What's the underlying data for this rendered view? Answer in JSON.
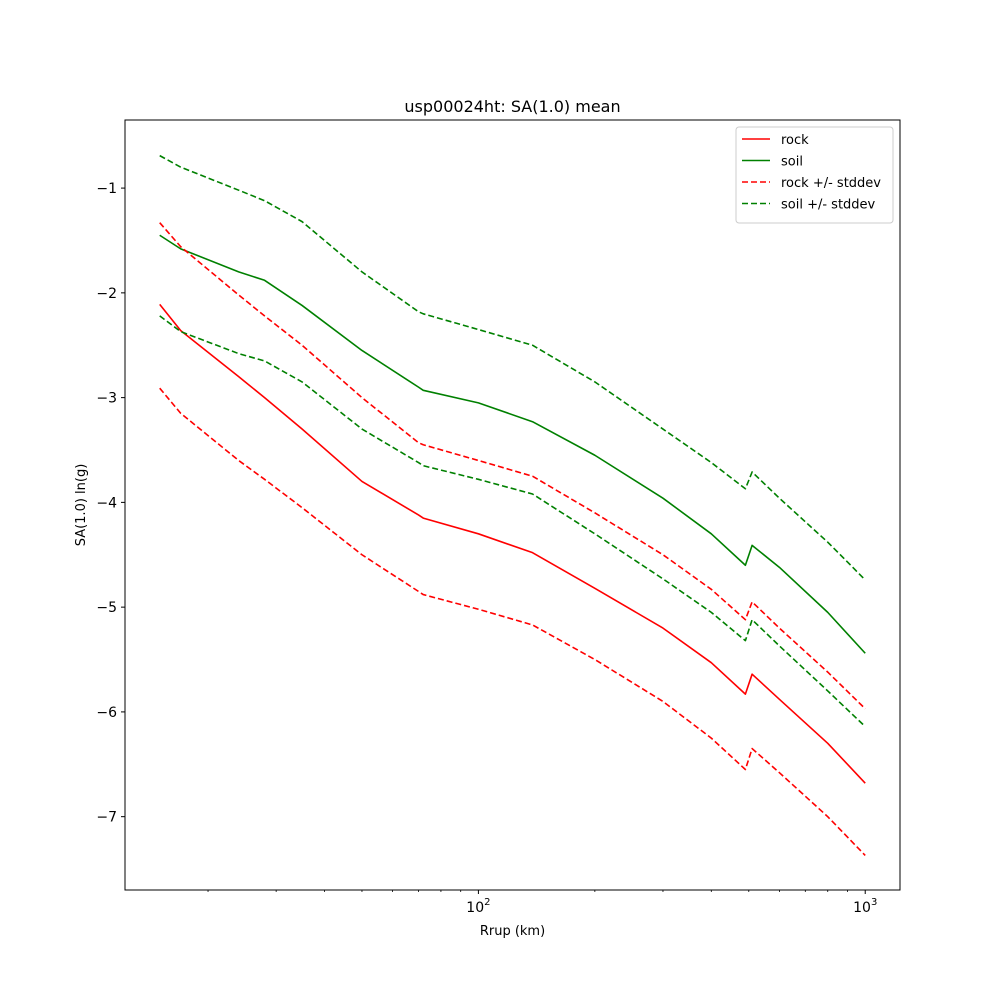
{
  "chart_data": {
    "type": "line",
    "title": "usp00024ht: SA(1.0) mean",
    "xlabel": "Rrup (km)",
    "ylabel": "SA(1.0) ln(g)",
    "xscale": "log",
    "xlim": [
      12.2,
      1230
    ],
    "ylim": [
      -7.7,
      -0.35
    ],
    "x_ticks": [
      {
        "value": 100,
        "base": "10",
        "exp": "2"
      },
      {
        "value": 1000,
        "base": "10",
        "exp": "3"
      }
    ],
    "y_ticks": [
      {
        "value": -1,
        "label": "−1"
      },
      {
        "value": -2,
        "label": "−2"
      },
      {
        "value": -3,
        "label": "−3"
      },
      {
        "value": -4,
        "label": "−4"
      },
      {
        "value": -5,
        "label": "−5"
      },
      {
        "value": -6,
        "label": "−6"
      },
      {
        "value": -7,
        "label": "−7"
      }
    ],
    "grid": false,
    "legend": "upper right",
    "series": [
      {
        "name": "rock",
        "color": "#ff0000",
        "dashed": false,
        "x": [
          15,
          17,
          24,
          28,
          35,
          50,
          70,
          72,
          100,
          138,
          200,
          300,
          400,
          490,
          510,
          600,
          800,
          1000
        ],
        "y": [
          -2.11,
          -2.36,
          -2.8,
          -3.0,
          -3.3,
          -3.8,
          -4.12,
          -4.15,
          -4.3,
          -4.48,
          -4.82,
          -5.2,
          -5.53,
          -5.83,
          -5.64,
          -5.88,
          -6.3,
          -6.68
        ]
      },
      {
        "name": "soil",
        "color": "#008000",
        "dashed": false,
        "x": [
          15,
          17,
          24,
          28,
          35,
          50,
          70,
          72,
          100,
          138,
          200,
          300,
          400,
          490,
          510,
          600,
          800,
          1000
        ],
        "y": [
          -1.45,
          -1.58,
          -1.8,
          -1.88,
          -2.12,
          -2.55,
          -2.9,
          -2.93,
          -3.05,
          -3.23,
          -3.55,
          -3.96,
          -4.3,
          -4.6,
          -4.41,
          -4.62,
          -5.05,
          -5.44
        ]
      },
      {
        "name": "rock +/- stddev",
        "color": "#ff0000",
        "dashed": true,
        "x": [
          15,
          17,
          24,
          28,
          35,
          50,
          70,
          72,
          100,
          138,
          200,
          300,
          400,
          490,
          510,
          600,
          800,
          1000
        ],
        "y": [
          -1.33,
          -1.56,
          -2.02,
          -2.22,
          -2.5,
          -3.0,
          -3.43,
          -3.45,
          -3.6,
          -3.75,
          -4.1,
          -4.5,
          -4.83,
          -5.12,
          -4.95,
          -5.2,
          -5.62,
          -5.97
        ]
      },
      {
        "name": "",
        "color": "#ff0000",
        "dashed": true,
        "x": [
          15,
          17,
          24,
          28,
          35,
          50,
          70,
          72,
          100,
          138,
          200,
          300,
          400,
          490,
          510,
          600,
          800,
          1000
        ],
        "y": [
          -2.91,
          -3.15,
          -3.6,
          -3.78,
          -4.05,
          -4.5,
          -4.85,
          -4.88,
          -5.02,
          -5.17,
          -5.5,
          -5.9,
          -6.25,
          -6.55,
          -6.35,
          -6.58,
          -7.0,
          -7.37
        ]
      },
      {
        "name": "soil +/- stddev",
        "color": "#008000",
        "dashed": true,
        "x": [
          15,
          17,
          24,
          28,
          35,
          50,
          70,
          72,
          100,
          138,
          200,
          300,
          400,
          490,
          510,
          600,
          800,
          1000
        ],
        "y": [
          -0.69,
          -0.8,
          -1.02,
          -1.12,
          -1.32,
          -1.8,
          -2.18,
          -2.2,
          -2.35,
          -2.5,
          -2.85,
          -3.3,
          -3.62,
          -3.87,
          -3.71,
          -3.96,
          -4.38,
          -4.74
        ]
      },
      {
        "name": "",
        "color": "#008000",
        "dashed": true,
        "x": [
          15,
          17,
          24,
          28,
          35,
          50,
          70,
          72,
          100,
          138,
          200,
          300,
          400,
          490,
          510,
          600,
          800,
          1000
        ],
        "y": [
          -2.22,
          -2.37,
          -2.58,
          -2.65,
          -2.85,
          -3.3,
          -3.62,
          -3.65,
          -3.78,
          -3.92,
          -4.3,
          -4.73,
          -5.05,
          -5.32,
          -5.12,
          -5.37,
          -5.8,
          -6.14
        ]
      }
    ]
  }
}
